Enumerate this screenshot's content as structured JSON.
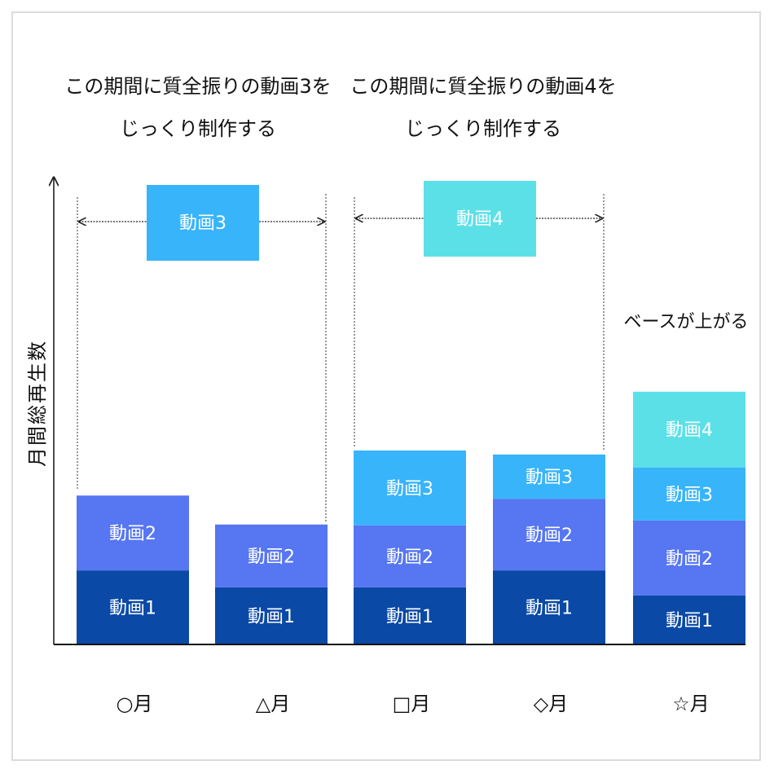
{
  "chart_data": {
    "type": "bar",
    "stacked": true,
    "title": "",
    "xlabel": "",
    "ylabel": "月間総再生数",
    "categories": [
      "○月",
      "△月",
      "□月",
      "◇月",
      "☆月"
    ],
    "series": [
      {
        "name": "動画1",
        "color": "#0a49a6",
        "values": [
          92,
          71,
          71,
          92,
          61
        ]
      },
      {
        "name": "動画2",
        "color": "#5676f2",
        "values": [
          93,
          78,
          77,
          89,
          93
        ]
      },
      {
        "name": "動画3",
        "color": "#38b4fb",
        "values": [
          0,
          0,
          93,
          55,
          66
        ]
      },
      {
        "name": "動画4",
        "color": "#5ce0e8",
        "values": [
          0,
          0,
          0,
          0,
          94
        ]
      }
    ],
    "segment_labels": [
      "動画1",
      "動画2",
      "動画3",
      "動画4"
    ],
    "ylim": [
      0,
      580
    ],
    "grid": false,
    "annotations": {
      "period1": {
        "text_line1": "この期間に質全振りの動画3を",
        "text_line2": "じっくり制作する",
        "box_label": "動画3",
        "box_color": "#38b4fb",
        "from_category": 0,
        "to_category": 1
      },
      "period2": {
        "text_line1": "この期間に質全振りの動画4を",
        "text_line2": "じっくり制作する",
        "box_label": "動画4",
        "box_color": "#5ce0e8",
        "from_category": 2,
        "to_category": 3
      },
      "note": "ベースが上がる"
    }
  }
}
